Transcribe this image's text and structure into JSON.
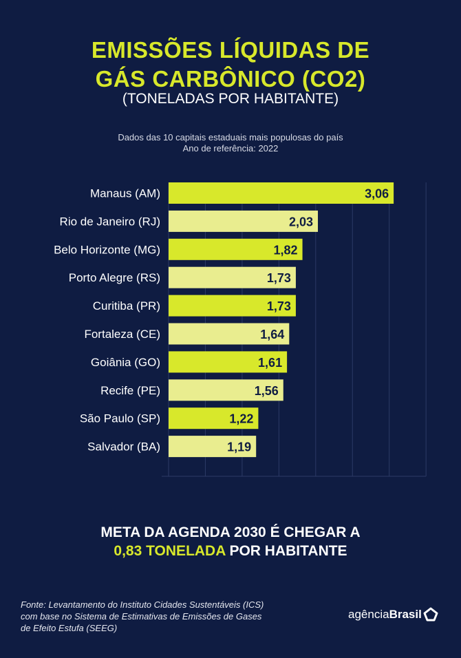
{
  "title_line1": "EMISSÕES LÍQUIDAS DE",
  "title_line2": "GÁS CARBÔNICO (CO2)",
  "subtitle": "(TONELADAS POR HABITANTE)",
  "note_line1": "Dados das 10 capitais estaduais mais populosas do país",
  "note_line2": "Ano de referência: 2022",
  "meta_line1": "META DA AGENDA 2030 É CHEGAR A",
  "meta_highlight": "0,83 TONELADA",
  "meta_rest": " POR HABITANTE",
  "source_line1": "Fonte: Levantamento do Instituto Cidades Sustentáveis (ICS)",
  "source_line2": "com base no Sistema de Estimativas de Emissões de Gases",
  "source_line3": "de Efeito Estufa (SEEG)",
  "logo_light": "agência",
  "logo_bold": "Brasil",
  "colors": {
    "background": "#0f1c42",
    "bar_bright": "#d8e82b",
    "bar_pale": "#e9ed8f",
    "label": "#0f1c42"
  },
  "chart_data": {
    "type": "bar",
    "orientation": "horizontal",
    "categories": [
      "Manaus (AM)",
      "Rio de Janeiro (RJ)",
      "Belo Horizonte (MG)",
      "Porto Alegre (RS)",
      "Curitiba (PR)",
      "Fortaleza (CE)",
      "Goiânia (GO)",
      "Recife (PE)",
      "São Paulo (SP)",
      "Salvador (BA)"
    ],
    "values": [
      3.06,
      2.03,
      1.82,
      1.73,
      1.73,
      1.64,
      1.61,
      1.56,
      1.22,
      1.19
    ],
    "value_labels": [
      "3,06",
      "2,03",
      "1,82",
      "1,73",
      "1,73",
      "1,64",
      "1,61",
      "1,56",
      "1,22",
      "1,19"
    ],
    "xlim": [
      0,
      3.5
    ],
    "grid_step": 0.5,
    "grid": true,
    "legend": "none"
  }
}
